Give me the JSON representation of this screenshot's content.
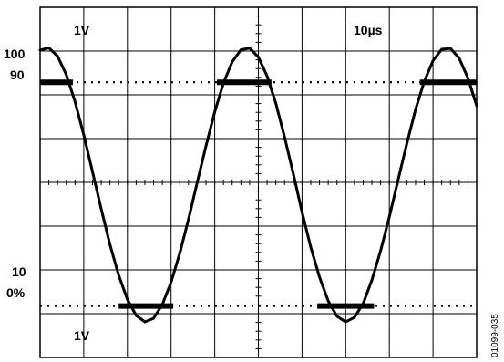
{
  "chart_data": {
    "type": "line",
    "grid": true,
    "grid_divisions": {
      "x": 10,
      "y": 8
    },
    "x_scale_label": "10µs",
    "y_scale_labels": [
      "1V",
      "1V"
    ],
    "level_labels": [
      "100",
      "90",
      "10",
      "0%"
    ],
    "figure_code": "01099-035",
    "x": [
      0,
      0.2,
      0.4,
      0.6,
      0.8,
      1.0,
      1.2,
      1.4,
      1.6,
      1.8,
      2.0,
      2.2,
      2.4,
      2.6,
      2.8,
      3.0,
      3.2,
      3.4,
      3.6,
      3.8,
      4.0,
      4.2,
      4.4,
      4.6,
      4.8,
      5.0,
      5.2,
      5.4,
      5.6,
      5.8,
      6.0,
      6.2,
      6.4,
      6.6,
      6.8,
      7.0,
      7.2,
      7.4,
      7.6,
      7.8,
      8.0,
      8.2,
      8.4,
      8.6,
      8.8,
      9.0,
      9.2,
      9.4,
      9.6,
      9.8,
      10.0
    ],
    "y": [
      101.5,
      102.3,
      99.3,
      92.7,
      83.1,
      71.2,
      58.0,
      44.6,
      32.0,
      21.0,
      12.3,
      6.6,
      4.3,
      5.6,
      10.5,
      18.5,
      28.9,
      41.1,
      54.2,
      67.2,
      79.4,
      89.7,
      97.3,
      101.6,
      102.2,
      99.0,
      92.2,
      82.4,
      70.4,
      57.3,
      43.6,
      31.0,
      20.3,
      11.8,
      6.3,
      4.3,
      5.9,
      10.9,
      19.2,
      29.7,
      41.9,
      55.1,
      68.1,
      80.2,
      90.3,
      97.7,
      101.8,
      102.1,
      98.6,
      91.5,
      81.6
    ],
    "reference_levels": [
      {
        "label": "90",
        "y": 90
      },
      {
        "label": "10",
        "y": 10
      }
    ],
    "threshold_markers": [
      {
        "x_range": [
          0,
          0.75
        ],
        "y": 90
      },
      {
        "x_range": [
          4.05,
          5.3
        ],
        "y": 90
      },
      {
        "x_range": [
          8.7,
          10.0
        ],
        "y": 90
      },
      {
        "x_range": [
          1.8,
          3.05
        ],
        "y": 10
      },
      {
        "x_range": [
          6.35,
          7.65
        ],
        "y": 10
      }
    ],
    "xlim": [
      0,
      10
    ],
    "ylim": [
      -8.4,
      116.8
    ]
  }
}
